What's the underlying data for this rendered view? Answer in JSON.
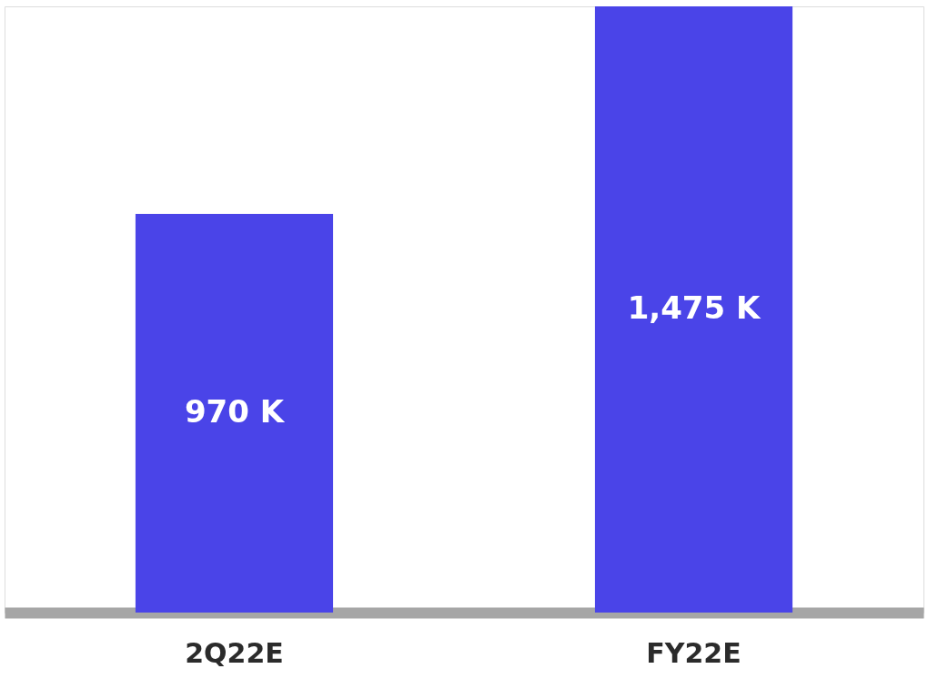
{
  "chart_data": {
    "type": "bar",
    "categories": [
      "2Q22E",
      "FY22E"
    ],
    "values": [
      970,
      1475
    ],
    "color": "#4a44e8",
    "value_labels": [
      "970 K",
      "1,475 K"
    ]
  }
}
